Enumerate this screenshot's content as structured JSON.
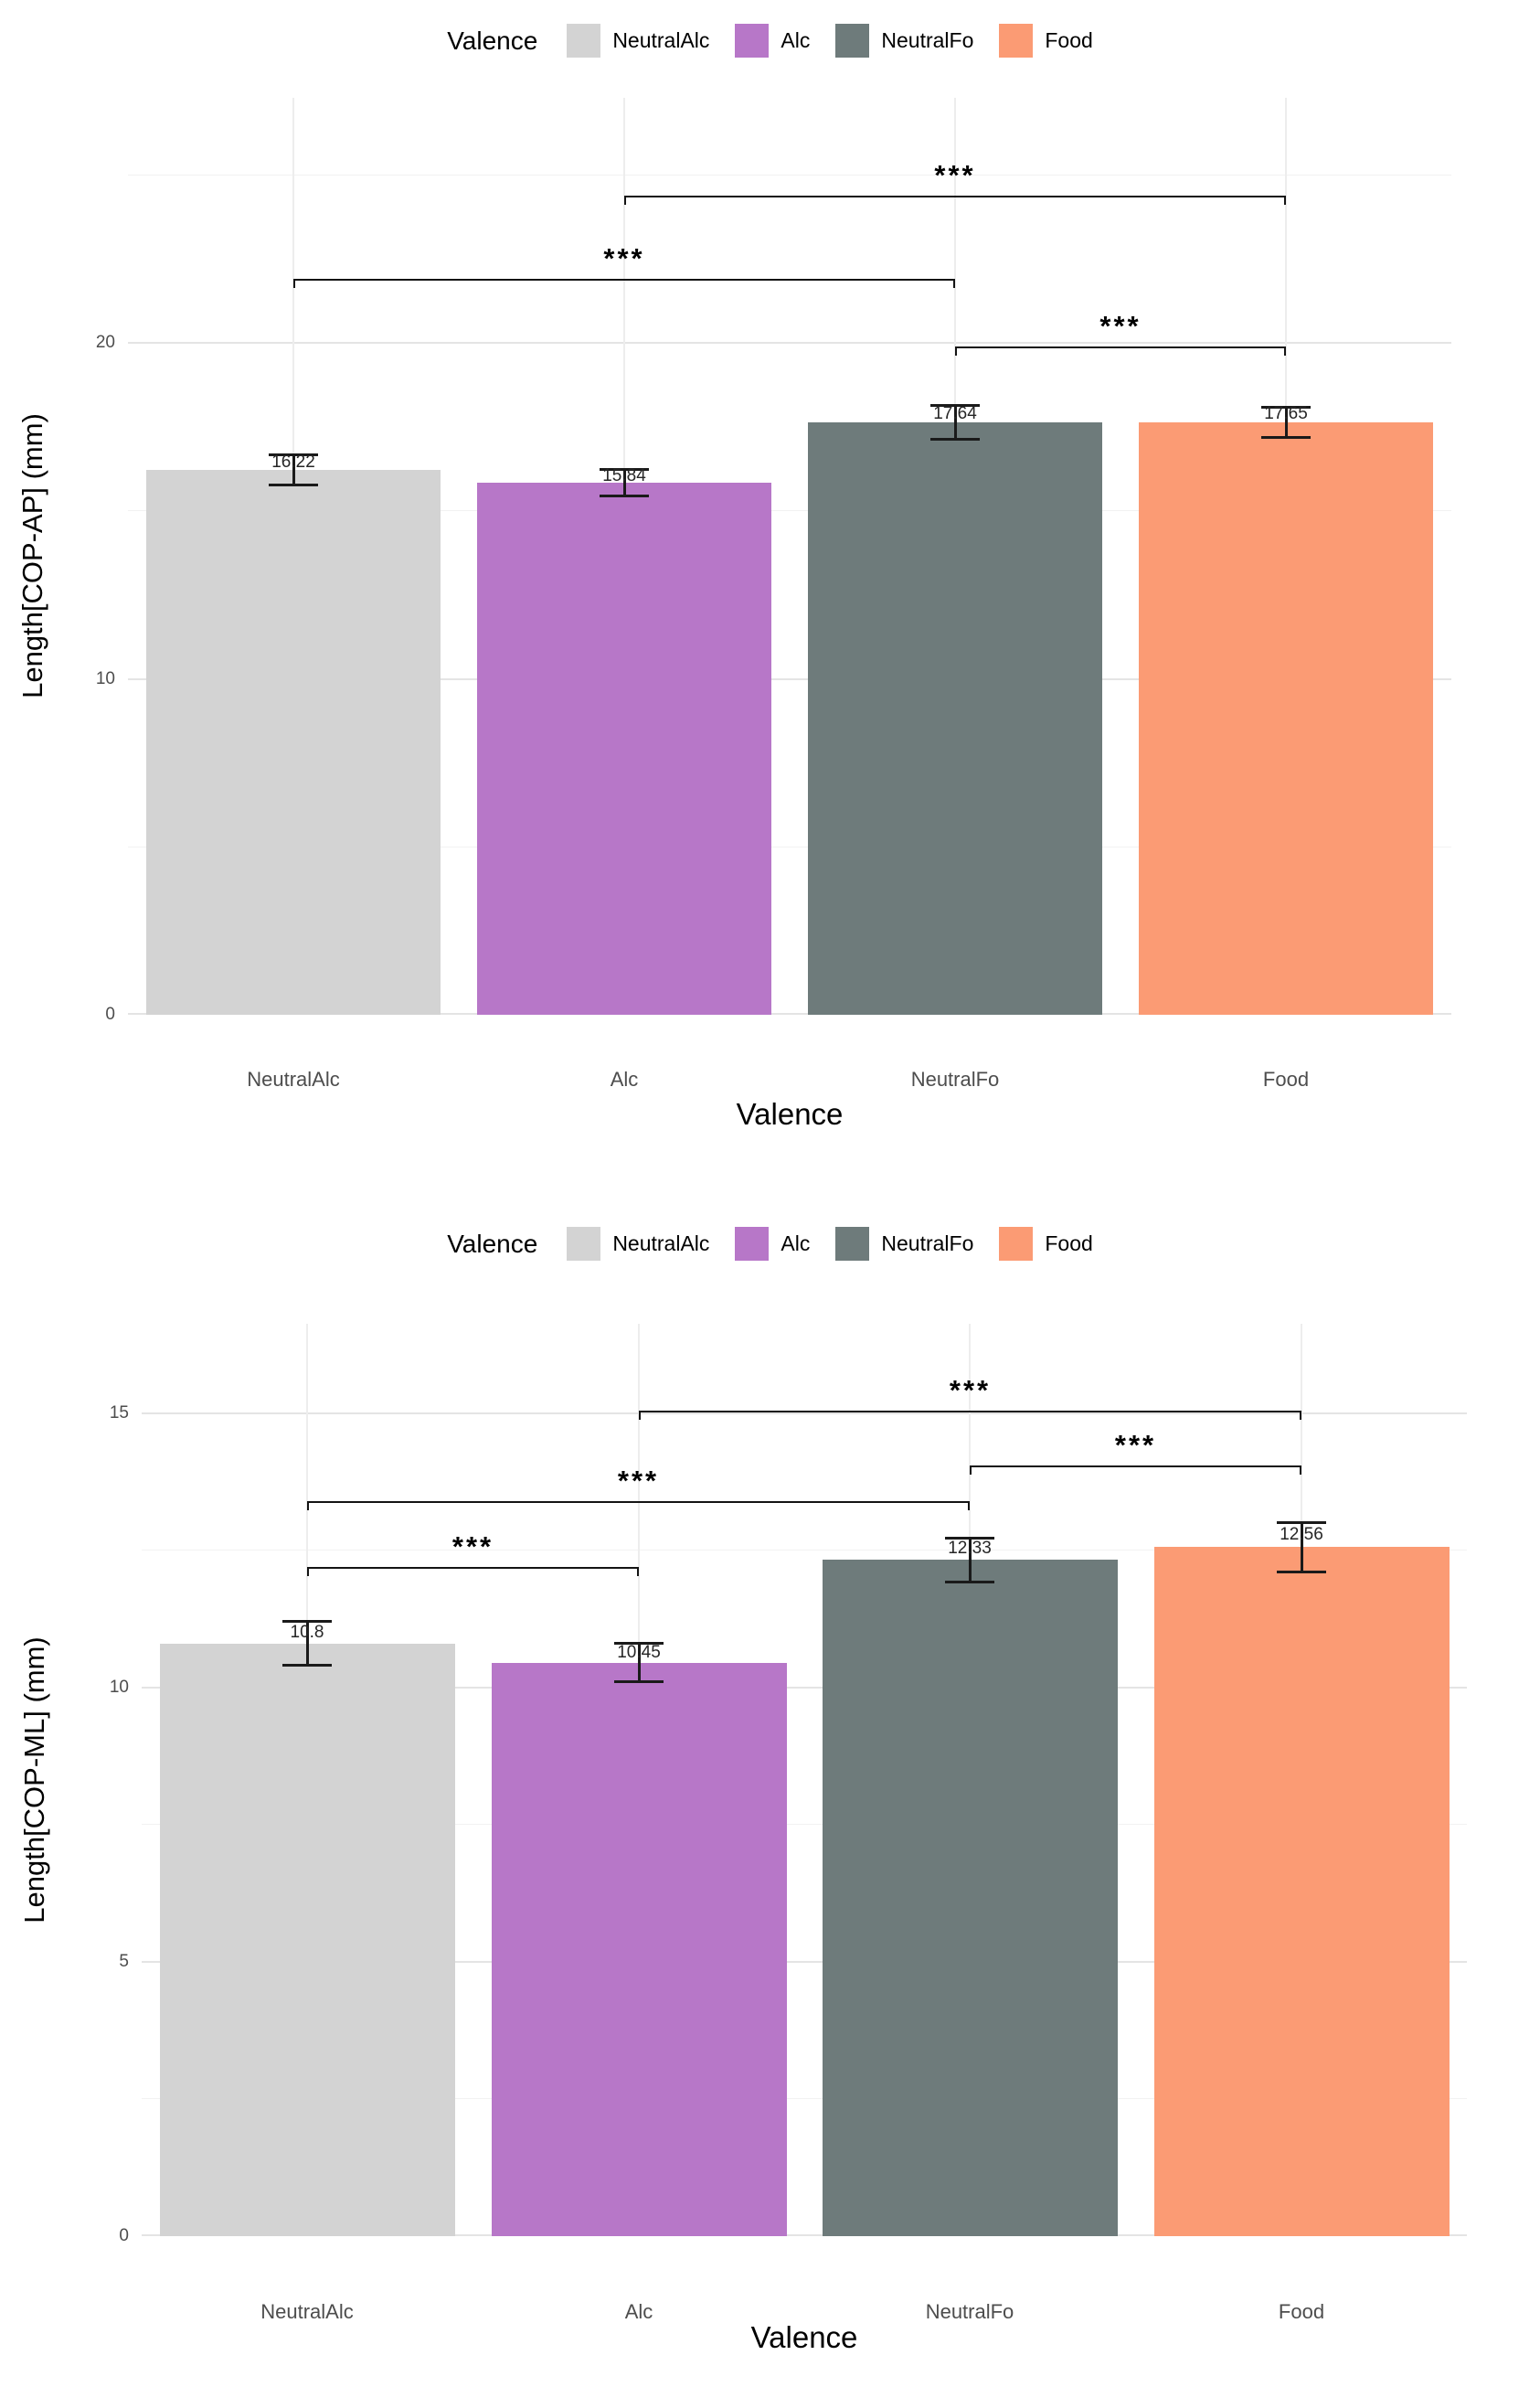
{
  "palette": {
    "NeutralAlc": "#d3d3d3",
    "Alc": "#b777c8",
    "NeutralFo": "#6e7b7b",
    "Food": "#fb9b74",
    "grid_major": "#e4e4e4",
    "background": "#ffffff"
  },
  "legend": {
    "title": "Valence",
    "items": [
      {
        "label": "NeutralAlc",
        "color": "#d3d3d3"
      },
      {
        "label": "Alc",
        "color": "#b777c8"
      },
      {
        "label": "NeutralFo",
        "color": "#6e7b7b"
      },
      {
        "label": "Food",
        "color": "#fb9b74"
      }
    ]
  },
  "chart_data": [
    {
      "id": "length-cop-ap",
      "type": "bar",
      "title": "",
      "categories": [
        "NeutralAlc",
        "Alc",
        "NeutralFo",
        "Food"
      ],
      "values": [
        16.22,
        15.84,
        17.64,
        17.65
      ],
      "value_labels": [
        "16.22",
        "15.84",
        "17.64",
        "17.65"
      ],
      "errors": [
        0.45,
        0.4,
        0.5,
        0.45
      ],
      "bar_colors": [
        "#d3d3d3",
        "#b777c8",
        "#6e7b7b",
        "#fb9b74"
      ],
      "xlabel": "Valence",
      "ylabel": "Length[COP-AP] (mm)",
      "ylim": [
        0,
        27.3
      ],
      "yticks": [
        0,
        10,
        20
      ],
      "grid": true,
      "legend_position": "top",
      "significance": [
        {
          "from": "Alc",
          "to": "Food",
          "label": "***",
          "y": 24.4
        },
        {
          "from": "NeutralAlc",
          "to": "NeutralFo",
          "label": "***",
          "y": 21.9
        },
        {
          "from": "NeutralFo",
          "to": "Food",
          "label": "***",
          "y": 19.9
        }
      ]
    },
    {
      "id": "length-cop-ml",
      "type": "bar",
      "title": "",
      "categories": [
        "NeutralAlc",
        "Alc",
        "NeutralFo",
        "Food"
      ],
      "values": [
        10.8,
        10.45,
        12.33,
        12.56
      ],
      "value_labels": [
        "10.8",
        "10.45",
        "12.33",
        "12.56"
      ],
      "errors": [
        0.4,
        0.35,
        0.4,
        0.45
      ],
      "bar_colors": [
        "#d3d3d3",
        "#b777c8",
        "#6e7b7b",
        "#fb9b74"
      ],
      "xlabel": "Valence",
      "ylabel": "Length[COP-ML] (mm)",
      "ylim": [
        0,
        16.63
      ],
      "yticks": [
        0,
        5,
        10,
        15
      ],
      "grid": true,
      "legend_position": "top",
      "significance": [
        {
          "from": "Alc",
          "to": "Food",
          "label": "***",
          "y": 15.05
        },
        {
          "from": "NeutralFo",
          "to": "Food",
          "label": "***",
          "y": 14.05
        },
        {
          "from": "NeutralAlc",
          "to": "NeutralFo",
          "label": "***",
          "y": 13.4
        },
        {
          "from": "NeutralAlc",
          "to": "Alc",
          "label": "***",
          "y": 12.2
        }
      ]
    }
  ]
}
